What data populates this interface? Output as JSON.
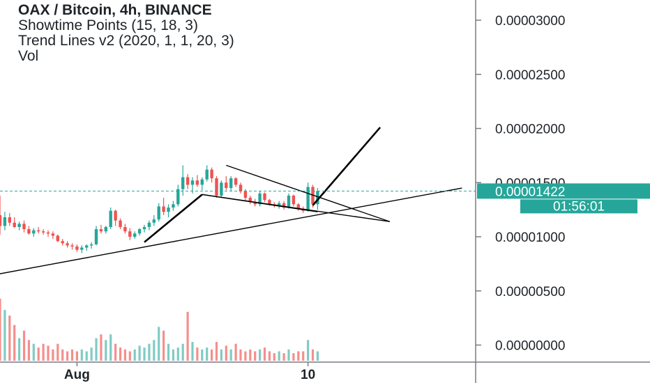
{
  "legend": {
    "title": "OAX / Bitcoin, 4h, BINANCE",
    "line2": "Showtime Points (15, 18, 3)",
    "line3": "Trend Lines v2 (2020, 1, 1, 20, 3)",
    "line4": "Vol"
  },
  "colors": {
    "up": "#26a69a",
    "down": "#ef5350",
    "vol_up": "#80cbc4",
    "vol_down": "#f48f8c",
    "price_tag": "#26a69a",
    "axis": "#787b86",
    "trendline": "#000000"
  },
  "price_tag": {
    "price": "0.00001422",
    "countdown": "01:56:01"
  },
  "chart_data": {
    "type": "candlestick",
    "symbol": "OAX / Bitcoin",
    "timeframe": "4h",
    "exchange": "BINANCE",
    "y_ticks": [
      "0.00000000",
      "0.00000500",
      "0.00001000",
      "0.00001500",
      "0.00002000",
      "0.00002500",
      "0.00003000"
    ],
    "y_tick_values": [
      0,
      500,
      1000,
      1500,
      2000,
      2500,
      3000
    ],
    "ylim": [
      -150,
      3300
    ],
    "y_unit_note": "values in 1e-8 BTC",
    "x_ticks": [
      "Aug",
      "10"
    ],
    "x_tick_index": [
      16,
      64
    ],
    "last_price": 1422,
    "ohlc": [
      [
        1200,
        1380,
        1020,
        1100
      ],
      [
        1100,
        1230,
        1060,
        1180
      ],
      [
        1180,
        1220,
        1100,
        1130
      ],
      [
        1130,
        1180,
        1080,
        1090
      ],
      [
        1090,
        1140,
        1060,
        1120
      ],
      [
        1120,
        1150,
        1040,
        1070
      ],
      [
        1070,
        1100,
        1020,
        1030
      ],
      [
        1030,
        1080,
        1000,
        1060
      ],
      [
        1060,
        1090,
        1030,
        1050
      ],
      [
        1050,
        1070,
        1020,
        1040
      ],
      [
        1040,
        1060,
        1000,
        1030
      ],
      [
        1030,
        1050,
        980,
        1010
      ],
      [
        1010,
        1020,
        950,
        960
      ],
      [
        960,
        980,
        920,
        940
      ],
      [
        940,
        960,
        900,
        920
      ],
      [
        920,
        940,
        880,
        910
      ],
      [
        910,
        930,
        860,
        880
      ],
      [
        880,
        920,
        850,
        900
      ],
      [
        900,
        930,
        870,
        920
      ],
      [
        920,
        950,
        890,
        930
      ],
      [
        930,
        1100,
        920,
        1070
      ],
      [
        1070,
        1110,
        1030,
        1050
      ],
      [
        1050,
        1100,
        1030,
        1090
      ],
      [
        1090,
        1270,
        1070,
        1240
      ],
      [
        1240,
        1250,
        1100,
        1150
      ],
      [
        1150,
        1170,
        1070,
        1090
      ],
      [
        1090,
        1120,
        1030,
        1050
      ],
      [
        1050,
        1080,
        970,
        1000
      ],
      [
        1000,
        1050,
        980,
        1030
      ],
      [
        1030,
        1080,
        1010,
        1070
      ],
      [
        1070,
        1110,
        1040,
        1090
      ],
      [
        1090,
        1150,
        1060,
        1130
      ],
      [
        1130,
        1200,
        1100,
        1160
      ],
      [
        1160,
        1310,
        1140,
        1280
      ],
      [
        1280,
        1360,
        1200,
        1230
      ],
      [
        1230,
        1300,
        1180,
        1270
      ],
      [
        1270,
        1330,
        1240,
        1300
      ],
      [
        1300,
        1480,
        1280,
        1440
      ],
      [
        1440,
        1660,
        1380,
        1550
      ],
      [
        1550,
        1580,
        1440,
        1480
      ],
      [
        1480,
        1550,
        1400,
        1520
      ],
      [
        1520,
        1570,
        1460,
        1480
      ],
      [
        1480,
        1550,
        1430,
        1530
      ],
      [
        1530,
        1660,
        1510,
        1620
      ],
      [
        1620,
        1640,
        1500,
        1540
      ],
      [
        1540,
        1560,
        1360,
        1380
      ],
      [
        1380,
        1520,
        1360,
        1500
      ],
      [
        1500,
        1560,
        1430,
        1450
      ],
      [
        1450,
        1560,
        1420,
        1540
      ],
      [
        1540,
        1550,
        1460,
        1480
      ],
      [
        1480,
        1500,
        1400,
        1420
      ],
      [
        1420,
        1440,
        1330,
        1360
      ],
      [
        1360,
        1380,
        1300,
        1320
      ],
      [
        1320,
        1350,
        1280,
        1300
      ],
      [
        1300,
        1420,
        1280,
        1400
      ],
      [
        1400,
        1410,
        1320,
        1340
      ],
      [
        1340,
        1350,
        1290,
        1300
      ],
      [
        1300,
        1320,
        1270,
        1290
      ],
      [
        1290,
        1330,
        1260,
        1310
      ],
      [
        1310,
        1330,
        1250,
        1270
      ],
      [
        1270,
        1400,
        1260,
        1380
      ],
      [
        1380,
        1390,
        1280,
        1300
      ],
      [
        1300,
        1310,
        1240,
        1260
      ],
      [
        1260,
        1280,
        1220,
        1240
      ],
      [
        1240,
        1500,
        1230,
        1460
      ],
      [
        1460,
        1480,
        1270,
        1300
      ],
      [
        1300,
        1450,
        1250,
        1422
      ]
    ],
    "volume": [
      330,
      270,
      240,
      190,
      120,
      160,
      110,
      90,
      70,
      90,
      80,
      60,
      90,
      60,
      50,
      60,
      50,
      60,
      50,
      70,
      120,
      140,
      110,
      140,
      90,
      70,
      60,
      50,
      60,
      80,
      70,
      90,
      110,
      180,
      160,
      90,
      60,
      70,
      90,
      260,
      100,
      70,
      60,
      70,
      60,
      100,
      60,
      80,
      60,
      90,
      60,
      50,
      60,
      50,
      60,
      70,
      50,
      40,
      50,
      40,
      60,
      40,
      50,
      50,
      110,
      60,
      50
    ],
    "trend_lines": [
      {
        "x1": -1,
        "y1": 650,
        "x2": 96,
        "y2": 1450
      },
      {
        "x1": 30,
        "y1": 950,
        "x2": 42,
        "y2": 1390
      },
      {
        "x1": 42,
        "y1": 1390,
        "x2": 66,
        "y2": 1230
      },
      {
        "x1": 47,
        "y1": 1660,
        "x2": 81,
        "y2": 1140
      },
      {
        "x1": 42,
        "y1": 1390,
        "x2": 81,
        "y2": 1140
      },
      {
        "x1": 65,
        "y1": 1290,
        "x2": 79,
        "y2": 2010
      }
    ]
  }
}
